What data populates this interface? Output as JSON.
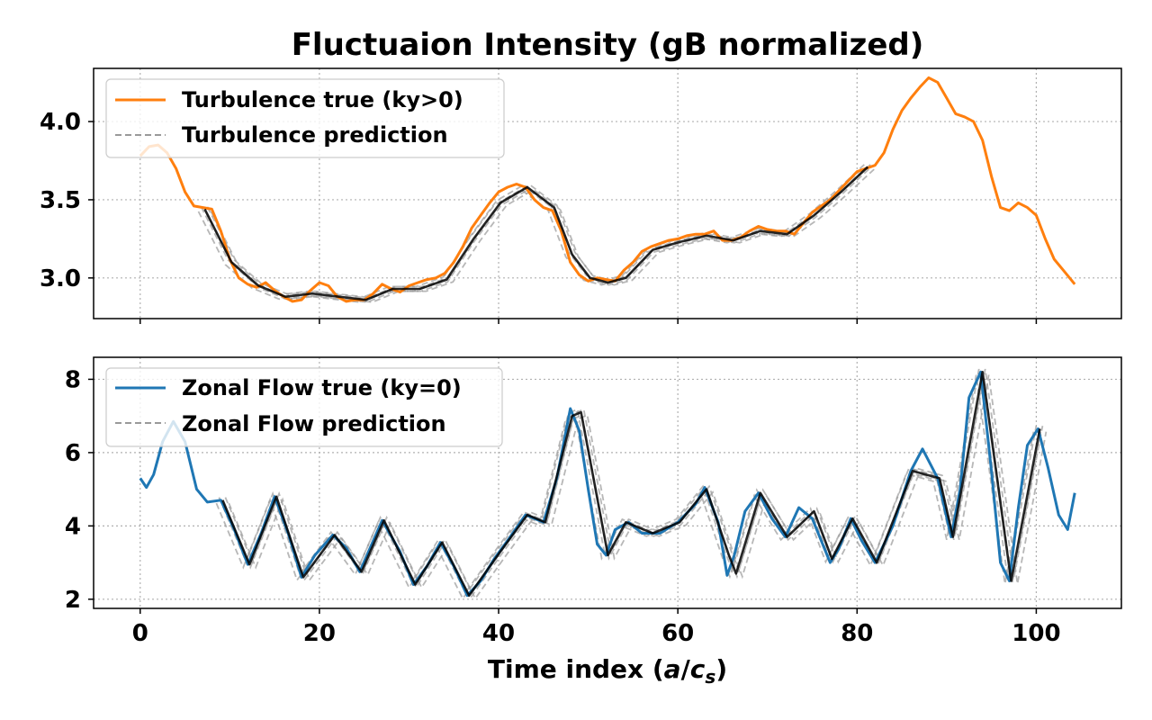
{
  "chart_data": [
    {
      "type": "line",
      "title": "Fluctuaion Intensity (gB normalized)",
      "xlabel": "",
      "ylabel": "",
      "xlim": [
        -5.2,
        109.5
      ],
      "ylim": [
        2.74,
        4.34
      ],
      "xticks": [
        0,
        20,
        40,
        60,
        80,
        100
      ],
      "yticks": [
        3.0,
        3.5,
        4.0
      ],
      "ytick_labels": [
        "3.0",
        "3.5",
        "4.0"
      ],
      "grid": true,
      "legend_position": "top-left",
      "series": [
        {
          "name": "Turbulence true (ky>0)",
          "color": "#ff7f0e",
          "style": "solid",
          "x": [
            0,
            1,
            2,
            3,
            4,
            5,
            6,
            7,
            8,
            9,
            10,
            11,
            12,
            13,
            14,
            15,
            16,
            17,
            18,
            19,
            20,
            21,
            22,
            23,
            24,
            25,
            26,
            27,
            28,
            29,
            30,
            31,
            32,
            33,
            34,
            35,
            36,
            37,
            38,
            39,
            40,
            41,
            42,
            43,
            44,
            45,
            46,
            47,
            48,
            49,
            50,
            51,
            52,
            53,
            54,
            55,
            56,
            57,
            58,
            59,
            60,
            61,
            62,
            63,
            64,
            65,
            66,
            67,
            68,
            69,
            70,
            71,
            72,
            73,
            74,
            75,
            76,
            77,
            78,
            79,
            80,
            81,
            82,
            83,
            84,
            85,
            86,
            87,
            88,
            89,
            90,
            91,
            92,
            93,
            94,
            95,
            96,
            97,
            98,
            99,
            100,
            101,
            102,
            103,
            104.3
          ],
          "y": [
            3.78,
            3.84,
            3.85,
            3.8,
            3.7,
            3.55,
            3.46,
            3.45,
            3.44,
            3.3,
            3.12,
            3.0,
            2.96,
            2.94,
            2.97,
            2.92,
            2.88,
            2.85,
            2.86,
            2.92,
            2.97,
            2.95,
            2.88,
            2.85,
            2.86,
            2.86,
            2.9,
            2.96,
            2.93,
            2.91,
            2.95,
            2.97,
            2.99,
            3.0,
            3.03,
            3.1,
            3.2,
            3.32,
            3.4,
            3.48,
            3.55,
            3.58,
            3.6,
            3.58,
            3.5,
            3.45,
            3.43,
            3.3,
            3.1,
            3.02,
            2.98,
            3.0,
            2.99,
            2.98,
            3.05,
            3.1,
            3.17,
            3.2,
            3.22,
            3.24,
            3.25,
            3.27,
            3.28,
            3.28,
            3.3,
            3.24,
            3.24,
            3.26,
            3.3,
            3.33,
            3.31,
            3.3,
            3.3,
            3.28,
            3.35,
            3.42,
            3.46,
            3.5,
            3.56,
            3.62,
            3.68,
            3.7,
            3.72,
            3.8,
            3.95,
            4.07,
            4.15,
            4.22,
            4.28,
            4.25,
            4.15,
            4.05,
            4.03,
            4.0,
            3.88,
            3.65,
            3.45,
            3.43,
            3.48,
            3.45,
            3.4,
            3.25,
            3.12,
            3.05,
            2.96
          ]
        },
        {
          "name": "Turbulence prediction",
          "color": "#999999",
          "style": "dashed",
          "x": [
            7,
            10,
            13,
            16,
            19,
            22,
            25,
            28,
            31,
            34,
            37,
            40,
            43,
            46,
            48,
            50,
            52,
            54,
            57,
            60,
            63,
            66,
            69,
            72,
            75,
            78,
            81
          ],
          "y": [
            3.44,
            3.1,
            2.95,
            2.88,
            2.9,
            2.88,
            2.86,
            2.93,
            2.93,
            2.99,
            3.25,
            3.48,
            3.58,
            3.45,
            3.15,
            3.0,
            2.97,
            3.0,
            3.18,
            3.23,
            3.27,
            3.24,
            3.3,
            3.28,
            3.4,
            3.55,
            3.71
          ]
        }
      ]
    },
    {
      "type": "line",
      "title": "",
      "xlabel": "Time index (a/c_s)",
      "xlabel_main": "Time index (",
      "xlabel_a": "a",
      "xlabel_slash": "/",
      "xlabel_c": "c",
      "xlabel_sub": "s",
      "xlabel_close": ")",
      "ylabel": "",
      "xlim": [
        -5.2,
        109.5
      ],
      "ylim": [
        1.75,
        8.6
      ],
      "xticks": [
        0,
        20,
        40,
        60,
        80,
        100
      ],
      "xtick_labels": [
        "0",
        "20",
        "40",
        "60",
        "80",
        "100"
      ],
      "yticks": [
        2,
        4,
        6,
        8
      ],
      "ytick_labels": [
        "2",
        "4",
        "6",
        "8"
      ],
      "grid": true,
      "legend_position": "top-left",
      "series": [
        {
          "name": "Zonal Flow true (ky=0)",
          "color": "#1f77b4",
          "style": "solid",
          "x": [
            0,
            0.7,
            1.5,
            2.5,
            3.7,
            5,
            6.3,
            7.5,
            9,
            10.5,
            12,
            13.5,
            15,
            16.5,
            18,
            19.5,
            21.5,
            23,
            24.5,
            27,
            29,
            30.5,
            32,
            33.5,
            35,
            36.5,
            38,
            39.5,
            41,
            43,
            45,
            46.5,
            48,
            49,
            50,
            51,
            52,
            53,
            54.5,
            56,
            58,
            60,
            62,
            63,
            64.5,
            65.5,
            66.3,
            67.5,
            69,
            70.5,
            72,
            73.5,
            75,
            77,
            78,
            79.3,
            80.5,
            82,
            84,
            86,
            87.3,
            89,
            90.5,
            91.5,
            92.5,
            93.8,
            95,
            96,
            97,
            98,
            99,
            100.2,
            101.3,
            102.5,
            103.5,
            104.3
          ],
          "y": [
            5.3,
            5.05,
            5.4,
            6.3,
            6.85,
            6.3,
            5.0,
            4.65,
            4.7,
            3.9,
            2.95,
            3.8,
            4.8,
            3.8,
            2.6,
            3.2,
            3.75,
            3.4,
            2.75,
            4.15,
            3.3,
            2.4,
            2.9,
            3.55,
            2.9,
            2.1,
            2.5,
            3.1,
            3.6,
            4.3,
            4.1,
            5.3,
            7.2,
            6.6,
            5.0,
            3.5,
            3.2,
            3.9,
            4.1,
            3.8,
            3.8,
            4.1,
            4.6,
            5.05,
            4.1,
            2.65,
            3.2,
            4.4,
            4.9,
            4.2,
            3.7,
            4.5,
            4.2,
            3.0,
            3.4,
            4.2,
            3.6,
            3.0,
            4.0,
            5.5,
            6.1,
            5.3,
            3.7,
            5.0,
            7.5,
            8.2,
            5.5,
            3.0,
            2.5,
            4.5,
            6.2,
            6.65,
            5.6,
            4.3,
            3.9,
            4.9
          ]
        },
        {
          "name": "Zonal Flow prediction",
          "color": "#999999",
          "style": "dashed",
          "x": [
            9,
            12,
            15,
            18,
            21.5,
            24.5,
            27,
            30.5,
            33.5,
            36.5,
            40,
            43,
            45,
            48,
            49,
            50,
            52,
            54,
            57,
            60,
            63,
            65.5,
            66.3,
            69,
            72,
            75,
            77,
            79.3,
            82,
            86,
            89,
            90.5,
            93.8,
            97,
            100.2
          ],
          "y": [
            4.7,
            2.95,
            4.8,
            2.6,
            3.75,
            2.75,
            4.15,
            2.4,
            3.55,
            2.1,
            3.3,
            4.3,
            4.1,
            7.0,
            7.1,
            5.8,
            3.2,
            4.1,
            3.8,
            4.1,
            5.0,
            3.2,
            2.7,
            4.9,
            3.7,
            4.4,
            3.1,
            4.2,
            3.0,
            5.5,
            5.3,
            3.7,
            8.2,
            2.5,
            6.65
          ]
        }
      ]
    }
  ]
}
